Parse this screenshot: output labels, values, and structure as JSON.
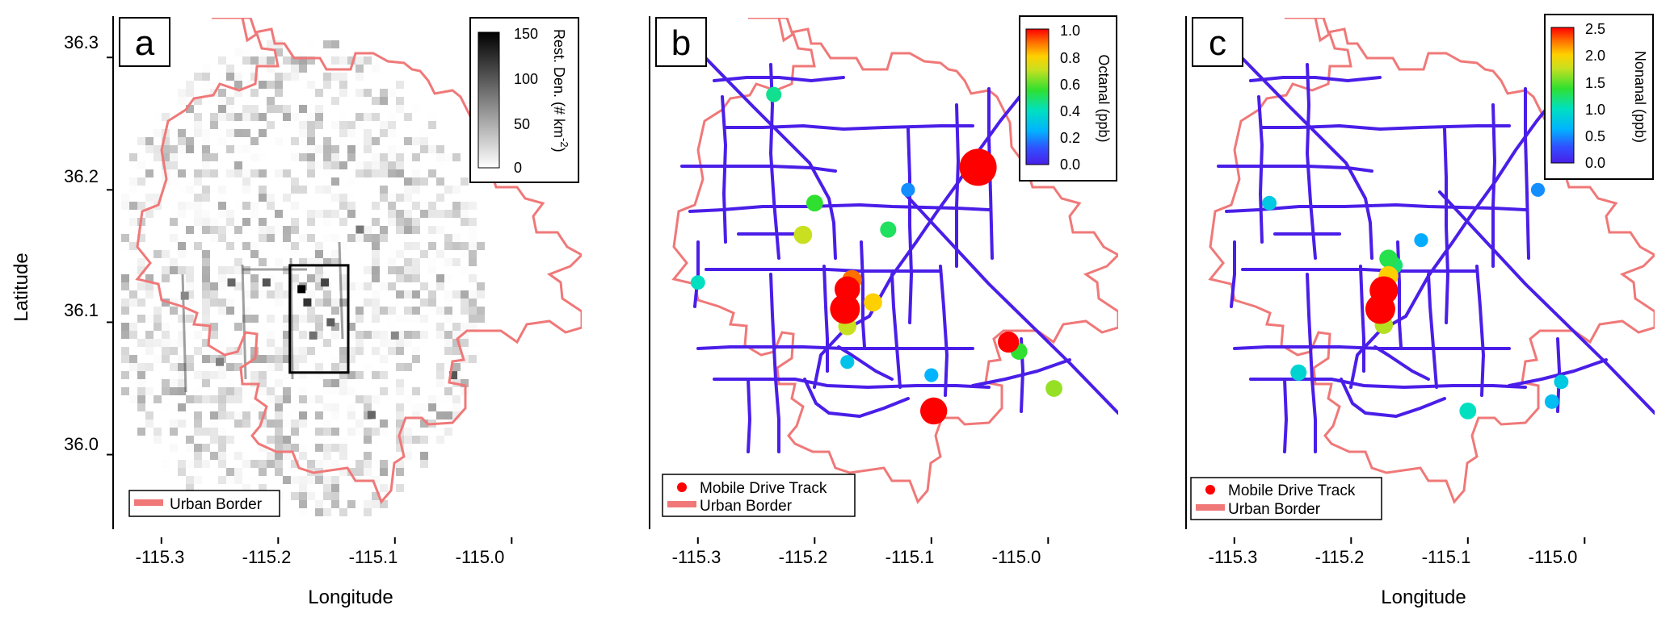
{
  "figure": {
    "xlabel": "Longitude",
    "ylabel": "Latitude",
    "x_ticks": [
      "-115.3",
      "-115.2",
      "-115.1",
      "-115.0"
    ],
    "y_ticks": [
      "36.3",
      "36.2",
      "36.1",
      "36.0"
    ]
  },
  "colors": {
    "urban_border": "#f07878",
    "track_low": "#4a1ee8",
    "outline": "#000000"
  },
  "chart_data": [
    {
      "panel": "a",
      "type": "heatmap",
      "xlim": [
        -115.34,
        -114.94
      ],
      "ylim": [
        35.94,
        36.33
      ],
      "colorbar": {
        "label": "Rest. Den. (# km",
        "label_sup": "-2",
        "label_end": ")",
        "ticks": [
          "150",
          "100",
          "50",
          "0"
        ],
        "range": [
          0,
          150
        ],
        "scale": "white-to-black"
      },
      "legend": [
        {
          "label": "Urban Border",
          "kind": "line"
        }
      ],
      "highlight_box": {
        "lon": [
          -115.19,
          -115.14
        ],
        "lat": [
          36.062,
          36.143
        ]
      },
      "hotspots": [
        {
          "lon": -115.18,
          "lat": 36.125,
          "value": 150
        },
        {
          "lon": -115.175,
          "lat": 36.115,
          "value": 120
        },
        {
          "lon": -115.16,
          "lat": 36.13,
          "value": 110
        },
        {
          "lon": -115.21,
          "lat": 36.13,
          "value": 100
        },
        {
          "lon": -115.24,
          "lat": 36.13,
          "value": 90
        },
        {
          "lon": -115.155,
          "lat": 36.1,
          "value": 95
        },
        {
          "lon": -115.17,
          "lat": 36.09,
          "value": 85
        },
        {
          "lon": -115.28,
          "lat": 36.12,
          "value": 70
        },
        {
          "lon": -115.13,
          "lat": 36.17,
          "value": 80
        },
        {
          "lon": -115.12,
          "lat": 36.03,
          "value": 90
        },
        {
          "lon": -115.05,
          "lat": 36.06,
          "value": 100
        },
        {
          "lon": -115.25,
          "lat": 36.07,
          "value": 75
        },
        {
          "lon": -115.1,
          "lat": 36.09,
          "value": 70
        }
      ]
    },
    {
      "panel": "b",
      "type": "scatter",
      "xlim": [
        -115.34,
        -114.94
      ],
      "ylim": [
        35.94,
        36.33
      ],
      "colorbar": {
        "label": "Octanal (ppb)",
        "ticks": [
          "1.0",
          "0.8",
          "0.6",
          "0.4",
          "0.2",
          "0.0"
        ],
        "range": [
          0,
          1.0
        ]
      },
      "legend": [
        {
          "label": "Mobile Drive Track",
          "kind": "dot"
        },
        {
          "label": "Urban Border",
          "kind": "line"
        }
      ],
      "points": [
        {
          "lon": -115.06,
          "lat": 36.217,
          "value": 1.0,
          "size": 1.0
        },
        {
          "lon": -115.098,
          "lat": 36.033,
          "value": 1.0,
          "size": 0.65
        },
        {
          "lon": -115.172,
          "lat": 36.125,
          "value": 1.0,
          "size": 0.6
        },
        {
          "lon": -115.174,
          "lat": 36.11,
          "value": 1.0,
          "size": 0.75
        },
        {
          "lon": -115.168,
          "lat": 36.132,
          "value": 0.9,
          "size": 0.4
        },
        {
          "lon": -115.15,
          "lat": 36.115,
          "value": 0.8,
          "size": 0.35
        },
        {
          "lon": -115.172,
          "lat": 36.097,
          "value": 0.7,
          "size": 0.35
        },
        {
          "lon": -115.034,
          "lat": 36.085,
          "value": 1.0,
          "size": 0.45
        },
        {
          "lon": -115.025,
          "lat": 36.078,
          "value": 0.55,
          "size": 0.3
        },
        {
          "lon": -114.995,
          "lat": 36.05,
          "value": 0.65,
          "size": 0.3
        },
        {
          "lon": -115.21,
          "lat": 36.166,
          "value": 0.7,
          "size": 0.35
        },
        {
          "lon": -115.2,
          "lat": 36.19,
          "value": 0.55,
          "size": 0.3
        },
        {
          "lon": -115.137,
          "lat": 36.17,
          "value": 0.5,
          "size": 0.28
        },
        {
          "lon": -115.235,
          "lat": 36.272,
          "value": 0.45,
          "size": 0.25
        },
        {
          "lon": -115.3,
          "lat": 36.13,
          "value": 0.4,
          "size": 0.22
        },
        {
          "lon": -115.172,
          "lat": 36.07,
          "value": 0.3,
          "size": 0.2
        },
        {
          "lon": -115.12,
          "lat": 36.2,
          "value": 0.2,
          "size": 0.2
        },
        {
          "lon": -115.1,
          "lat": 36.06,
          "value": 0.25,
          "size": 0.2
        }
      ]
    },
    {
      "panel": "c",
      "type": "scatter",
      "xlim": [
        -115.34,
        -114.94
      ],
      "ylim": [
        35.94,
        36.33
      ],
      "colorbar": {
        "label": "Nonanal (ppb)",
        "ticks": [
          "2.5",
          "2.0",
          "1.5",
          "1.0",
          "0.5",
          "0.0"
        ],
        "range": [
          0,
          2.5
        ]
      },
      "legend": [
        {
          "label": "Mobile Drive Track",
          "kind": "dot"
        },
        {
          "label": "Urban Border",
          "kind": "line"
        }
      ],
      "points": [
        {
          "lon": -115.172,
          "lat": 36.124,
          "value": 2.5,
          "size": 0.7
        },
        {
          "lon": -115.175,
          "lat": 36.11,
          "value": 2.5,
          "size": 0.75
        },
        {
          "lon": -115.168,
          "lat": 36.135,
          "value": 2.0,
          "size": 0.4
        },
        {
          "lon": -115.172,
          "lat": 36.098,
          "value": 1.7,
          "size": 0.35
        },
        {
          "lon": -115.168,
          "lat": 36.148,
          "value": 1.3,
          "size": 0.35
        },
        {
          "lon": -115.163,
          "lat": 36.143,
          "value": 1.2,
          "size": 0.3
        },
        {
          "lon": -115.1,
          "lat": 36.033,
          "value": 1.0,
          "size": 0.3
        },
        {
          "lon": -115.245,
          "lat": 36.062,
          "value": 0.9,
          "size": 0.28
        },
        {
          "lon": -115.27,
          "lat": 36.19,
          "value": 0.8,
          "size": 0.22
        },
        {
          "lon": -115.02,
          "lat": 36.055,
          "value": 0.8,
          "size": 0.22
        },
        {
          "lon": -115.028,
          "lat": 36.04,
          "value": 0.7,
          "size": 0.22
        },
        {
          "lon": -115.14,
          "lat": 36.162,
          "value": 0.6,
          "size": 0.2
        },
        {
          "lon": -115.04,
          "lat": 36.2,
          "value": 0.5,
          "size": 0.2
        }
      ]
    }
  ],
  "panels": {
    "a": {
      "letter": "a",
      "cb_label": "Rest. Den. (# km",
      "cb_sup": "-2",
      "cb_end": ")",
      "legend_border": "Urban Border"
    },
    "b": {
      "letter": "b",
      "cb_label": "Octanal (ppb)",
      "legend_track": "Mobile Drive Track",
      "legend_border": "Urban Border"
    },
    "c": {
      "letter": "c",
      "cb_label": "Nonanal (ppb)",
      "legend_track": "Mobile Drive Track",
      "legend_border": "Urban Border"
    }
  }
}
